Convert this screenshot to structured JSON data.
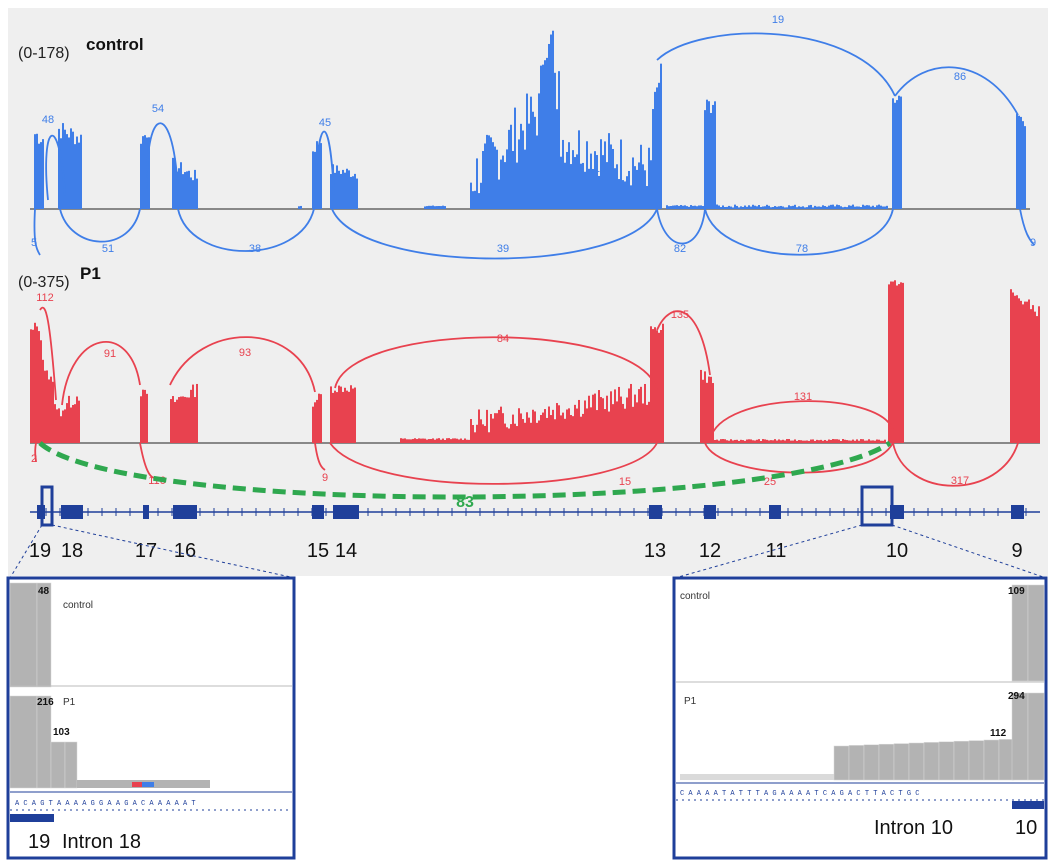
{
  "tracks": {
    "control": {
      "range": "(0-178)",
      "name": "control",
      "color": "#3f7ee8"
    },
    "p1": {
      "range": "(0-375)",
      "name": "P1",
      "color": "#e8424f"
    }
  },
  "control_labels": {
    "above": [
      {
        "text": "48"
      },
      {
        "text": "54"
      },
      {
        "text": "45"
      },
      {
        "text": "19"
      },
      {
        "text": "86"
      },
      {
        "text": "19"
      }
    ],
    "below": [
      {
        "text": "5"
      },
      {
        "text": "51"
      },
      {
        "text": "38"
      },
      {
        "text": "39"
      },
      {
        "text": "82"
      },
      {
        "text": "78"
      },
      {
        "text": "9"
      }
    ]
  },
  "p1_labels": {
    "above": [
      {
        "text": "112"
      },
      {
        "text": "91"
      },
      {
        "text": "93"
      },
      {
        "text": "84"
      },
      {
        "text": "135"
      },
      {
        "text": "131"
      }
    ],
    "below": [
      {
        "text": "2"
      },
      {
        "text": "116"
      },
      {
        "text": "9"
      },
      {
        "text": "15"
      },
      {
        "text": "25"
      },
      {
        "text": "317"
      }
    ]
  },
  "green_junction": {
    "value": "83",
    "color": "#2fa84f"
  },
  "exons": [
    {
      "label": "19"
    },
    {
      "label": "18"
    },
    {
      "label": "17"
    },
    {
      "label": "16"
    },
    {
      "label": "15"
    },
    {
      "label": "14"
    },
    {
      "label": "13"
    },
    {
      "label": "12"
    },
    {
      "label": "11"
    },
    {
      "label": "10"
    },
    {
      "label": "9"
    }
  ],
  "zoom_left": {
    "control_label": "control",
    "control_value": "48",
    "p1_label": "P1",
    "p1_value_high": "216",
    "p1_value_mid": "103",
    "sequence": "A C A G T A A A A G G A A G A C A A A A A T",
    "exon_label": "19",
    "intron_label": "Intron 18"
  },
  "zoom_right": {
    "control_label": "control",
    "control_value": "109",
    "p1_label": "P1",
    "p1_value_high": "294",
    "p1_value_mid": "112",
    "sequence": "C A A A A T A T T T A G A A A A T C A G A C T T A C T G C",
    "exon_label": "10",
    "intron_label": "Intron 10"
  }
}
